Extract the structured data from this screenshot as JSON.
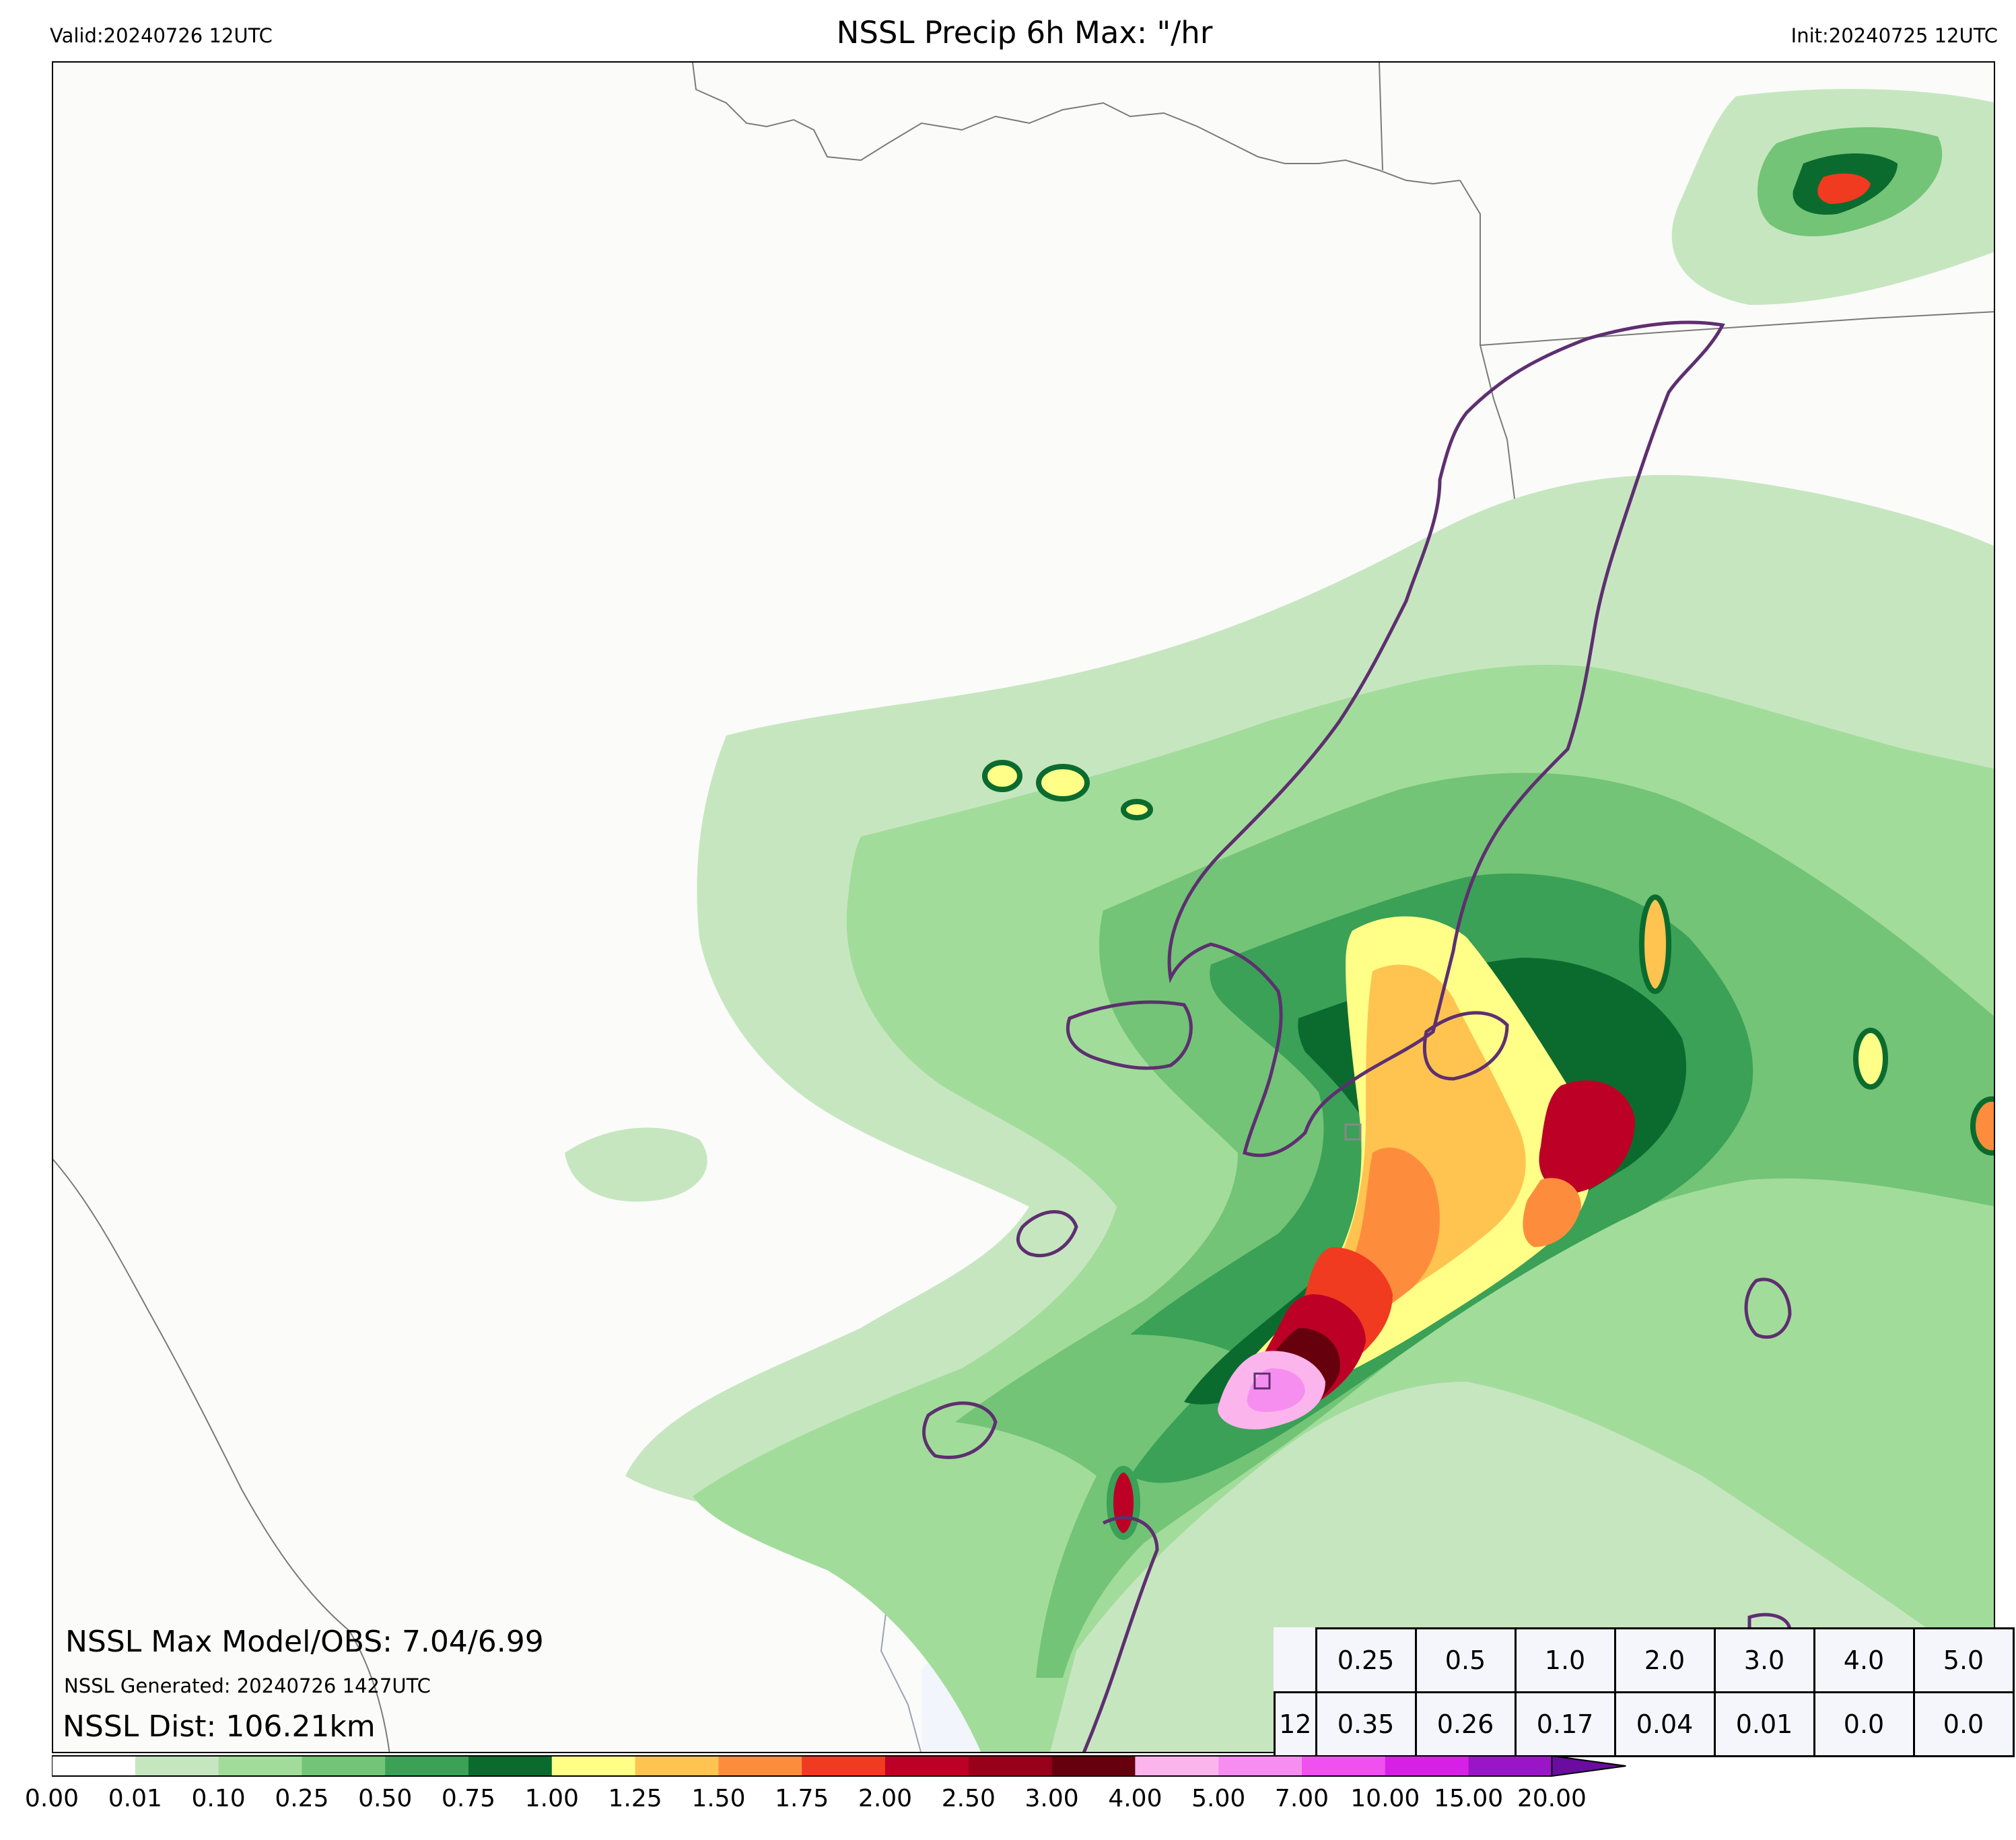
{
  "header": {
    "valid": "Valid:20240726 12UTC",
    "title": "NSSL Precip 6h Max: \"/hr",
    "init": "Init:20240725 12UTC"
  },
  "stats": {
    "max_model_obs": "NSSL Max Model/OBS: 7.04/6.99",
    "generated": "NSSL Generated: 20240726 1427UTC",
    "distance": "NSSL Dist: 106.21km"
  },
  "threshold_table": {
    "thresholds": [
      "0.25",
      "0.5",
      "1.0",
      "2.0",
      "3.0",
      "4.0",
      "5.0"
    ],
    "row_label": "12",
    "values": [
      "0.35",
      "0.26",
      "0.17",
      "0.04",
      "0.01",
      "0.0",
      "0.0"
    ]
  },
  "colorbar": {
    "tick_labels": [
      "0.00",
      "0.01",
      "0.10",
      "0.25",
      "0.50",
      "0.75",
      "1.00",
      "1.25",
      "1.50",
      "1.75",
      "2.00",
      "2.50",
      "3.00",
      "4.00",
      "5.00",
      "7.00",
      "10.00",
      "15.00",
      "20.00"
    ],
    "colors": [
      "#ffffff",
      "#c6e6c0",
      "#a2dc9a",
      "#73c476",
      "#3aa157",
      "#0b6b2f",
      "#ffff88",
      "#fec44f",
      "#fd8d3c",
      "#f03b20",
      "#bd0026",
      "#99001a",
      "#67000d",
      "#fbb4ec",
      "#f68ef0",
      "#f050f0",
      "#d81fe8",
      "#9b15c8"
    ],
    "extend_color": "#6a0ca0"
  },
  "map_colors": {
    "land": "#fbfbf9",
    "water": "#f2f5fb",
    "watch_outline": "#5e2f70",
    "borders": "#7a7a7a"
  }
}
